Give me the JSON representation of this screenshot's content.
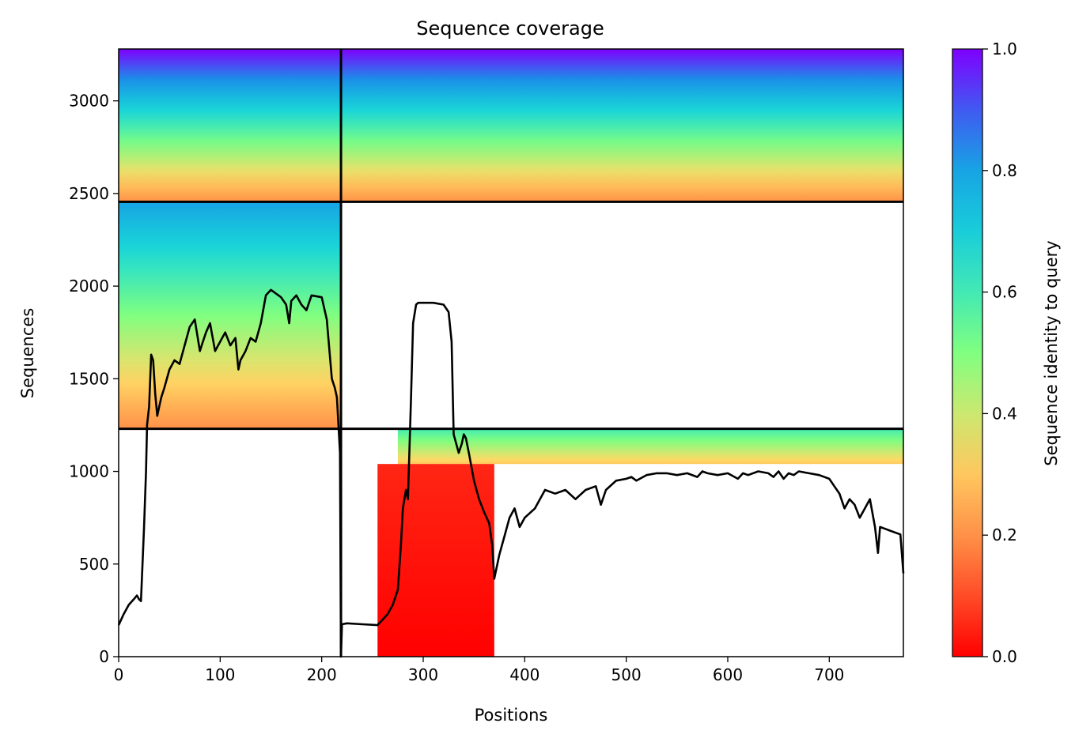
{
  "chart_data": {
    "type": "heatmap",
    "title": "Sequence coverage",
    "xlabel": "Positions",
    "ylabel": "Sequences",
    "xlim": [
      0,
      773
    ],
    "ylim": [
      0,
      3280
    ],
    "xticks": [
      0,
      100,
      200,
      300,
      400,
      500,
      600,
      700
    ],
    "yticks": [
      0,
      500,
      1000,
      1500,
      2000,
      2500,
      3000
    ],
    "colorbar": {
      "label": "Sequence identity to query",
      "colormap": "rainbow_r",
      "range": [
        0,
        1
      ],
      "ticks": [
        "0.0",
        "0.2",
        "0.4",
        "0.6",
        "0.8",
        "1.0"
      ],
      "color_stops": [
        "#ff0000",
        "#ff7f41",
        "#ffd966",
        "#80ff80",
        "#1adbd6",
        "#1696e8",
        "#7f00ff"
      ]
    },
    "chain_boundaries": {
      "x": 219,
      "y": [
        1230,
        2455
      ]
    },
    "coverage_blocks": [
      {
        "x": [
          0,
          219
        ],
        "y": [
          2455,
          3280
        ],
        "identity_range": [
          0.2,
          1.0
        ]
      },
      {
        "x": [
          219,
          773
        ],
        "y": [
          2455,
          3280
        ],
        "identity_range": [
          0.2,
          1.0
        ]
      },
      {
        "x": [
          0,
          219
        ],
        "y": [
          1230,
          2455
        ],
        "identity_range": [
          0.2,
          0.8
        ]
      },
      {
        "x": [
          275,
          773
        ],
        "y": [
          1040,
          1230
        ],
        "identity_range": [
          0.3,
          0.6
        ]
      },
      {
        "x": [
          255,
          370
        ],
        "y": [
          0,
          1040
        ],
        "identity_range": [
          0.0,
          0.05
        ]
      }
    ],
    "series": [
      {
        "x": [
          0,
          5,
          10,
          15,
          18,
          20,
          22,
          25,
          27,
          28,
          30,
          32,
          34,
          36,
          38,
          40,
          42,
          45,
          50,
          55,
          60,
          65,
          70,
          75,
          80,
          83,
          86,
          90,
          95,
          100,
          105,
          110,
          115,
          118,
          120,
          125,
          130,
          135,
          140,
          145,
          150,
          155,
          160,
          165,
          168,
          170,
          175,
          180,
          185,
          190,
          200,
          205,
          210,
          213,
          215,
          218,
          219,
          220,
          225,
          240,
          255,
          260,
          265,
          270,
          275,
          278,
          280,
          283,
          285,
          288,
          290,
          293,
          295,
          300,
          310,
          320,
          325,
          328,
          330,
          335,
          338,
          340,
          342,
          345,
          350,
          355,
          360,
          365,
          368,
          370,
          375,
          380,
          385,
          390,
          395,
          400,
          410,
          420,
          430,
          440,
          450,
          460,
          470,
          475,
          480,
          490,
          500,
          505,
          510,
          520,
          530,
          540,
          550,
          560,
          570,
          575,
          580,
          590,
          600,
          610,
          615,
          620,
          630,
          640,
          645,
          650,
          655,
          660,
          665,
          670,
          680,
          690,
          700,
          705,
          710,
          715,
          720,
          725,
          730,
          740,
          745,
          748,
          750,
          755,
          760,
          770,
          773
        ],
        "y": [
          170,
          230,
          280,
          310,
          330,
          310,
          300,
          700,
          1000,
          1250,
          1350,
          1630,
          1600,
          1420,
          1300,
          1350,
          1400,
          1450,
          1550,
          1600,
          1580,
          1680,
          1780,
          1820,
          1650,
          1700,
          1750,
          1800,
          1650,
          1700,
          1750,
          1680,
          1720,
          1550,
          1600,
          1650,
          1720,
          1700,
          1800,
          1950,
          1980,
          1960,
          1940,
          1900,
          1800,
          1920,
          1950,
          1900,
          1870,
          1950,
          1940,
          1820,
          1500,
          1450,
          1400,
          1100,
          0,
          175,
          180,
          175,
          170,
          200,
          230,
          280,
          360,
          600,
          800,
          900,
          850,
          1400,
          1800,
          1900,
          1910,
          1910,
          1910,
          1900,
          1860,
          1700,
          1200,
          1100,
          1150,
          1200,
          1180,
          1100,
          950,
          850,
          780,
          720,
          600,
          420,
          550,
          650,
          750,
          800,
          700,
          750,
          800,
          900,
          880,
          900,
          850,
          900,
          920,
          820,
          900,
          950,
          960,
          970,
          950,
          980,
          990,
          990,
          980,
          990,
          970,
          1000,
          990,
          980,
          990,
          960,
          990,
          980,
          1000,
          990,
          970,
          1000,
          960,
          990,
          980,
          1000,
          990,
          980,
          960,
          920,
          880,
          800,
          850,
          820,
          750,
          850,
          700,
          560,
          700,
          690,
          680,
          660,
          450
        ]
      }
    ]
  }
}
